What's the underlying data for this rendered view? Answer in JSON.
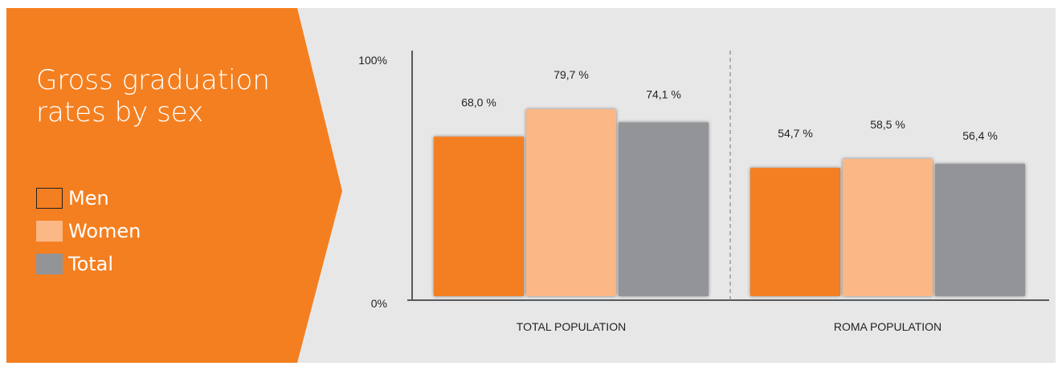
{
  "title": "Gross graduation rates by sex",
  "colors": {
    "panel_background": "#e7e7e8",
    "side_band": "#f47f20",
    "men": "#f47f20",
    "women": "#fbb785",
    "total": "#939497",
    "axis": "#58595b",
    "text": "#231f20"
  },
  "legend": {
    "items": [
      {
        "label": "Men",
        "color": "#f47f20",
        "style": "outline"
      },
      {
        "label": "Women",
        "color": "#fbb785",
        "style": "filled"
      },
      {
        "label": "Total",
        "color": "#939497",
        "style": "filled"
      }
    ]
  },
  "chart_data": {
    "type": "bar",
    "title": "Gross graduation rates by sex",
    "categories": [
      "TOTAL POPULATION",
      "ROMA POPULATION"
    ],
    "series": [
      {
        "name": "Men",
        "color": "#f47f20",
        "values": [
          68.0,
          54.7
        ],
        "labels": [
          "68,0 %",
          "54,7 %"
        ]
      },
      {
        "name": "Women",
        "color": "#fbb785",
        "values": [
          79.7,
          58.5
        ],
        "labels": [
          "79,7 %",
          "58,5 %"
        ]
      },
      {
        "name": "Total",
        "color": "#939497",
        "values": [
          74.1,
          56.4
        ],
        "labels": [
          "74,1 %",
          "56,4 %"
        ]
      }
    ],
    "ylim": [
      0,
      100
    ],
    "y_tick_labels": [
      "0%",
      "100%"
    ],
    "xlabel": "",
    "ylabel": "",
    "grid": false,
    "group_divider": "dashed",
    "legend_position": "left"
  }
}
